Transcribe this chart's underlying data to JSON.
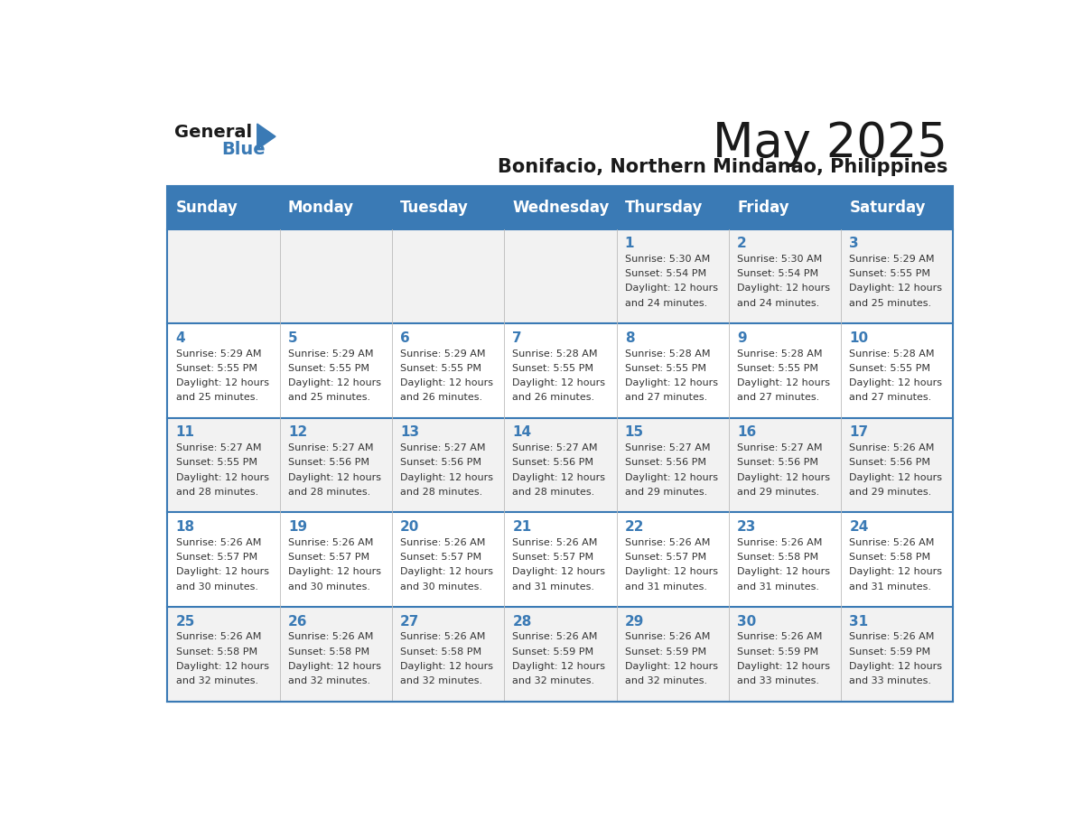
{
  "title": "May 2025",
  "subtitle": "Bonifacio, Northern Mindanao, Philippines",
  "days_of_week": [
    "Sunday",
    "Monday",
    "Tuesday",
    "Wednesday",
    "Thursday",
    "Friday",
    "Saturday"
  ],
  "header_bg": "#3a7ab5",
  "header_text": "#ffffff",
  "row_bg_odd": "#f2f2f2",
  "row_bg_even": "#ffffff",
  "separator_color": "#3a7ab5",
  "day_number_color": "#3a7ab5",
  "cell_text_color": "#333333",
  "weeks": [
    [
      {
        "day": null,
        "sunrise": null,
        "sunset": null,
        "daylight": null
      },
      {
        "day": null,
        "sunrise": null,
        "sunset": null,
        "daylight": null
      },
      {
        "day": null,
        "sunrise": null,
        "sunset": null,
        "daylight": null
      },
      {
        "day": null,
        "sunrise": null,
        "sunset": null,
        "daylight": null
      },
      {
        "day": 1,
        "sunrise": "5:30 AM",
        "sunset": "5:54 PM",
        "daylight": "12 hours|and 24 minutes."
      },
      {
        "day": 2,
        "sunrise": "5:30 AM",
        "sunset": "5:54 PM",
        "daylight": "12 hours|and 24 minutes."
      },
      {
        "day": 3,
        "sunrise": "5:29 AM",
        "sunset": "5:55 PM",
        "daylight": "12 hours|and 25 minutes."
      }
    ],
    [
      {
        "day": 4,
        "sunrise": "5:29 AM",
        "sunset": "5:55 PM",
        "daylight": "12 hours|and 25 minutes."
      },
      {
        "day": 5,
        "sunrise": "5:29 AM",
        "sunset": "5:55 PM",
        "daylight": "12 hours|and 25 minutes."
      },
      {
        "day": 6,
        "sunrise": "5:29 AM",
        "sunset": "5:55 PM",
        "daylight": "12 hours|and 26 minutes."
      },
      {
        "day": 7,
        "sunrise": "5:28 AM",
        "sunset": "5:55 PM",
        "daylight": "12 hours|and 26 minutes."
      },
      {
        "day": 8,
        "sunrise": "5:28 AM",
        "sunset": "5:55 PM",
        "daylight": "12 hours|and 27 minutes."
      },
      {
        "day": 9,
        "sunrise": "5:28 AM",
        "sunset": "5:55 PM",
        "daylight": "12 hours|and 27 minutes."
      },
      {
        "day": 10,
        "sunrise": "5:28 AM",
        "sunset": "5:55 PM",
        "daylight": "12 hours|and 27 minutes."
      }
    ],
    [
      {
        "day": 11,
        "sunrise": "5:27 AM",
        "sunset": "5:55 PM",
        "daylight": "12 hours|and 28 minutes."
      },
      {
        "day": 12,
        "sunrise": "5:27 AM",
        "sunset": "5:56 PM",
        "daylight": "12 hours|and 28 minutes."
      },
      {
        "day": 13,
        "sunrise": "5:27 AM",
        "sunset": "5:56 PM",
        "daylight": "12 hours|and 28 minutes."
      },
      {
        "day": 14,
        "sunrise": "5:27 AM",
        "sunset": "5:56 PM",
        "daylight": "12 hours|and 28 minutes."
      },
      {
        "day": 15,
        "sunrise": "5:27 AM",
        "sunset": "5:56 PM",
        "daylight": "12 hours|and 29 minutes."
      },
      {
        "day": 16,
        "sunrise": "5:27 AM",
        "sunset": "5:56 PM",
        "daylight": "12 hours|and 29 minutes."
      },
      {
        "day": 17,
        "sunrise": "5:26 AM",
        "sunset": "5:56 PM",
        "daylight": "12 hours|and 29 minutes."
      }
    ],
    [
      {
        "day": 18,
        "sunrise": "5:26 AM",
        "sunset": "5:57 PM",
        "daylight": "12 hours|and 30 minutes."
      },
      {
        "day": 19,
        "sunrise": "5:26 AM",
        "sunset": "5:57 PM",
        "daylight": "12 hours|and 30 minutes."
      },
      {
        "day": 20,
        "sunrise": "5:26 AM",
        "sunset": "5:57 PM",
        "daylight": "12 hours|and 30 minutes."
      },
      {
        "day": 21,
        "sunrise": "5:26 AM",
        "sunset": "5:57 PM",
        "daylight": "12 hours|and 31 minutes."
      },
      {
        "day": 22,
        "sunrise": "5:26 AM",
        "sunset": "5:57 PM",
        "daylight": "12 hours|and 31 minutes."
      },
      {
        "day": 23,
        "sunrise": "5:26 AM",
        "sunset": "5:58 PM",
        "daylight": "12 hours|and 31 minutes."
      },
      {
        "day": 24,
        "sunrise": "5:26 AM",
        "sunset": "5:58 PM",
        "daylight": "12 hours|and 31 minutes."
      }
    ],
    [
      {
        "day": 25,
        "sunrise": "5:26 AM",
        "sunset": "5:58 PM",
        "daylight": "12 hours|and 32 minutes."
      },
      {
        "day": 26,
        "sunrise": "5:26 AM",
        "sunset": "5:58 PM",
        "daylight": "12 hours|and 32 minutes."
      },
      {
        "day": 27,
        "sunrise": "5:26 AM",
        "sunset": "5:58 PM",
        "daylight": "12 hours|and 32 minutes."
      },
      {
        "day": 28,
        "sunrise": "5:26 AM",
        "sunset": "5:59 PM",
        "daylight": "12 hours|and 32 minutes."
      },
      {
        "day": 29,
        "sunrise": "5:26 AM",
        "sunset": "5:59 PM",
        "daylight": "12 hours|and 32 minutes."
      },
      {
        "day": 30,
        "sunrise": "5:26 AM",
        "sunset": "5:59 PM",
        "daylight": "12 hours|and 33 minutes."
      },
      {
        "day": 31,
        "sunrise": "5:26 AM",
        "sunset": "5:59 PM",
        "daylight": "12 hours|and 33 minutes."
      }
    ]
  ]
}
